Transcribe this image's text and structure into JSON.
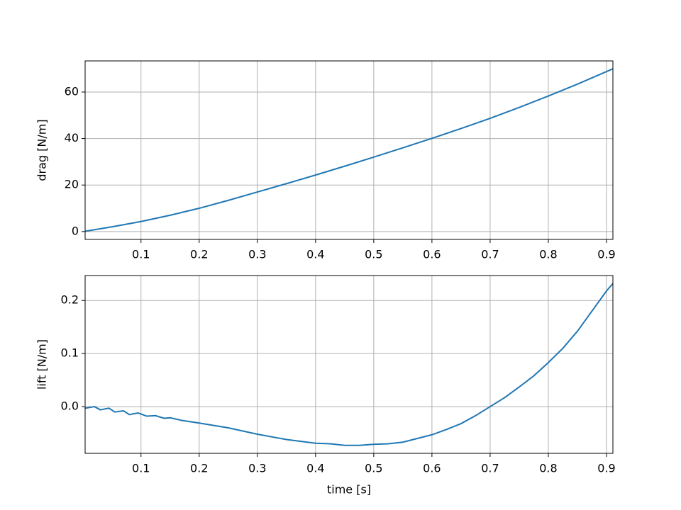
{
  "chart_data": [
    {
      "type": "line",
      "ylabel": "drag [N/m]",
      "grid": true,
      "xlim": [
        0.004,
        0.911
      ],
      "xticks": [
        0.1,
        0.2,
        0.3,
        0.4,
        0.5,
        0.6,
        0.7,
        0.8,
        0.9
      ],
      "ylim": [
        -3.4,
        73.4
      ],
      "yticks": [
        0,
        20,
        40,
        60
      ],
      "series": [
        {
          "color": "#1f77b4",
          "x": [
            0.004,
            0.05,
            0.1,
            0.15,
            0.2,
            0.25,
            0.3,
            0.35,
            0.4,
            0.45,
            0.5,
            0.55,
            0.6,
            0.65,
            0.7,
            0.75,
            0.8,
            0.85,
            0.9,
            0.911
          ],
          "values": [
            0.1,
            2.0,
            4.3,
            7.0,
            10.0,
            13.4,
            17.0,
            20.6,
            24.3,
            28.1,
            32.0,
            36.0,
            40.1,
            44.3,
            48.7,
            53.4,
            58.3,
            63.4,
            68.8,
            70.0
          ]
        }
      ]
    },
    {
      "type": "line",
      "ylabel": "lift [N/m]",
      "xlabel": "time [s]",
      "grid": true,
      "xlim": [
        0.004,
        0.911
      ],
      "xticks": [
        0.1,
        0.2,
        0.3,
        0.4,
        0.5,
        0.6,
        0.7,
        0.8,
        0.9
      ],
      "ylim": [
        -0.088,
        0.247
      ],
      "yticks": [
        {
          "value": 0,
          "label": "0.0"
        },
        0.1,
        0.2
      ],
      "series": [
        {
          "color": "#1f77b4",
          "x": [
            0.004,
            0.02,
            0.03,
            0.045,
            0.055,
            0.07,
            0.08,
            0.095,
            0.11,
            0.125,
            0.14,
            0.15,
            0.17,
            0.2,
            0.25,
            0.3,
            0.35,
            0.4,
            0.425,
            0.45,
            0.475,
            0.5,
            0.525,
            0.55,
            0.575,
            0.6,
            0.625,
            0.65,
            0.675,
            0.7,
            0.725,
            0.75,
            0.775,
            0.8,
            0.825,
            0.85,
            0.875,
            0.9,
            0.911
          ],
          "values": [
            -0.003,
            0.0,
            -0.006,
            -0.003,
            -0.01,
            -0.008,
            -0.015,
            -0.012,
            -0.018,
            -0.017,
            -0.022,
            -0.021,
            -0.026,
            -0.031,
            -0.04,
            -0.052,
            -0.062,
            -0.069,
            -0.07,
            -0.073,
            -0.073,
            -0.071,
            -0.07,
            -0.067,
            -0.06,
            -0.053,
            -0.043,
            -0.032,
            -0.017,
            0.0,
            0.017,
            0.037,
            0.058,
            0.083,
            0.11,
            0.142,
            0.18,
            0.218,
            0.232
          ]
        }
      ]
    }
  ]
}
